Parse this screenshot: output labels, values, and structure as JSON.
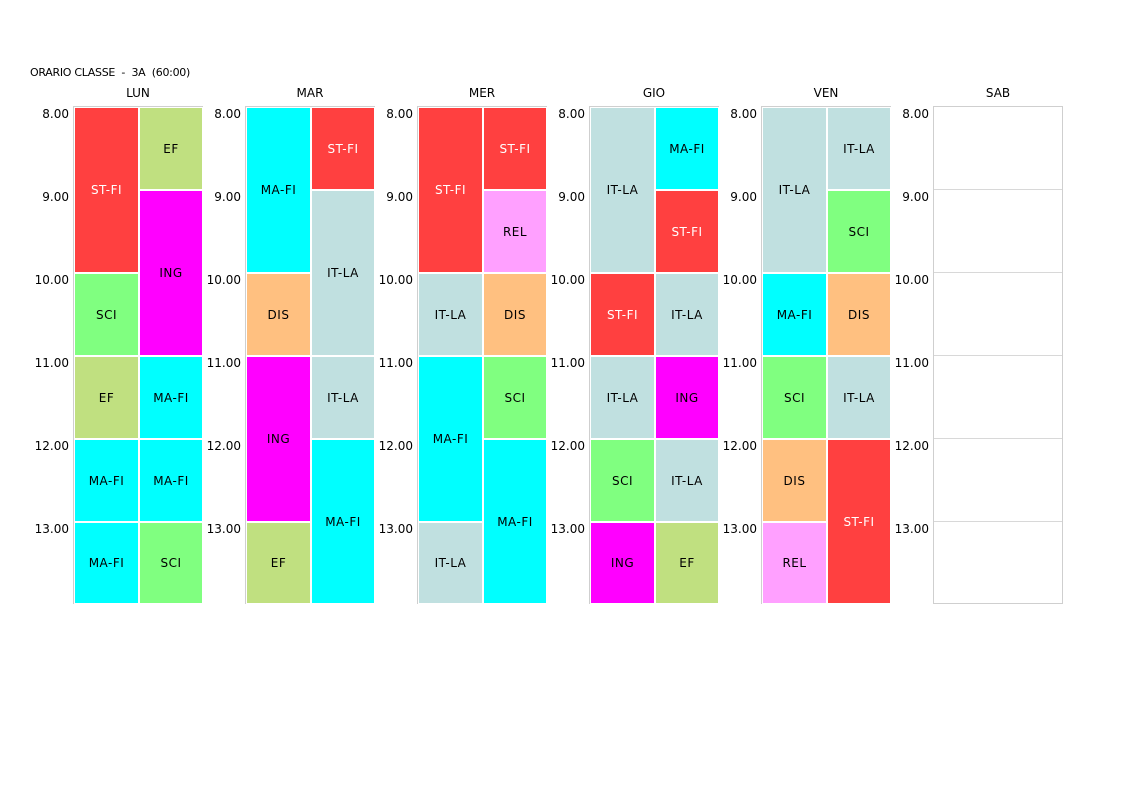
{
  "title": "ORARIO CLASSE  -  3A  (60:00)",
  "hours": [
    "8.00",
    "9.00",
    "10.00",
    "11.00",
    "12.00",
    "13.00"
  ],
  "colors": {
    "ST-FI": "#ff4040",
    "EF": "#c0e080",
    "ING": "#ff00ff",
    "SCI": "#80ff80",
    "MA-FI": "#00ffff",
    "DIS": "#ffc080",
    "IT-LA": "#c0e0e0",
    "REL": "#ffa0ff"
  },
  "light_text_subjects": [
    "ST-FI"
  ],
  "days": [
    {
      "label": "LUN",
      "blocks": [
        {
          "col": 0,
          "start": 0,
          "span": 2,
          "subject": "ST-FI"
        },
        {
          "col": 1,
          "start": 0,
          "span": 1,
          "subject": "EF"
        },
        {
          "col": 1,
          "start": 1,
          "span": 2,
          "subject": "ING"
        },
        {
          "col": 0,
          "start": 2,
          "span": 1,
          "subject": "SCI"
        },
        {
          "col": 0,
          "start": 3,
          "span": 1,
          "subject": "EF"
        },
        {
          "col": 1,
          "start": 3,
          "span": 1,
          "subject": "MA-FI"
        },
        {
          "col": 0,
          "start": 4,
          "span": 1,
          "subject": "MA-FI"
        },
        {
          "col": 1,
          "start": 4,
          "span": 1,
          "subject": "MA-FI"
        },
        {
          "col": 0,
          "start": 5,
          "span": 1,
          "subject": "MA-FI"
        },
        {
          "col": 1,
          "start": 5,
          "span": 1,
          "subject": "SCI"
        }
      ]
    },
    {
      "label": "MAR",
      "blocks": [
        {
          "col": 0,
          "start": 0,
          "span": 2,
          "subject": "MA-FI"
        },
        {
          "col": 1,
          "start": 0,
          "span": 1,
          "subject": "ST-FI"
        },
        {
          "col": 1,
          "start": 1,
          "span": 2,
          "subject": "IT-LA"
        },
        {
          "col": 0,
          "start": 2,
          "span": 1,
          "subject": "DIS"
        },
        {
          "col": 0,
          "start": 3,
          "span": 2,
          "subject": "ING"
        },
        {
          "col": 1,
          "start": 3,
          "span": 1,
          "subject": "IT-LA"
        },
        {
          "col": 1,
          "start": 4,
          "span": 2,
          "subject": "MA-FI"
        },
        {
          "col": 0,
          "start": 5,
          "span": 1,
          "subject": "EF"
        }
      ]
    },
    {
      "label": "MER",
      "blocks": [
        {
          "col": 0,
          "start": 0,
          "span": 2,
          "subject": "ST-FI"
        },
        {
          "col": 1,
          "start": 0,
          "span": 1,
          "subject": "ST-FI"
        },
        {
          "col": 1,
          "start": 1,
          "span": 1,
          "subject": "REL"
        },
        {
          "col": 0,
          "start": 2,
          "span": 1,
          "subject": "IT-LA"
        },
        {
          "col": 1,
          "start": 2,
          "span": 1,
          "subject": "DIS"
        },
        {
          "col": 0,
          "start": 3,
          "span": 2,
          "subject": "MA-FI"
        },
        {
          "col": 1,
          "start": 3,
          "span": 1,
          "subject": "SCI"
        },
        {
          "col": 1,
          "start": 4,
          "span": 2,
          "subject": "MA-FI"
        },
        {
          "col": 0,
          "start": 5,
          "span": 1,
          "subject": "IT-LA"
        }
      ]
    },
    {
      "label": "GIO",
      "blocks": [
        {
          "col": 0,
          "start": 0,
          "span": 2,
          "subject": "IT-LA"
        },
        {
          "col": 1,
          "start": 0,
          "span": 1,
          "subject": "MA-FI"
        },
        {
          "col": 1,
          "start": 1,
          "span": 1,
          "subject": "ST-FI"
        },
        {
          "col": 0,
          "start": 2,
          "span": 1,
          "subject": "ST-FI"
        },
        {
          "col": 1,
          "start": 2,
          "span": 1,
          "subject": "IT-LA"
        },
        {
          "col": 0,
          "start": 3,
          "span": 1,
          "subject": "IT-LA"
        },
        {
          "col": 1,
          "start": 3,
          "span": 1,
          "subject": "ING"
        },
        {
          "col": 0,
          "start": 4,
          "span": 1,
          "subject": "SCI"
        },
        {
          "col": 1,
          "start": 4,
          "span": 1,
          "subject": "IT-LA"
        },
        {
          "col": 0,
          "start": 5,
          "span": 1,
          "subject": "ING"
        },
        {
          "col": 1,
          "start": 5,
          "span": 1,
          "subject": "EF"
        }
      ]
    },
    {
      "label": "VEN",
      "blocks": [
        {
          "col": 0,
          "start": 0,
          "span": 2,
          "subject": "IT-LA"
        },
        {
          "col": 1,
          "start": 0,
          "span": 1,
          "subject": "IT-LA"
        },
        {
          "col": 1,
          "start": 1,
          "span": 1,
          "subject": "SCI"
        },
        {
          "col": 0,
          "start": 2,
          "span": 1,
          "subject": "MA-FI"
        },
        {
          "col": 1,
          "start": 2,
          "span": 1,
          "subject": "DIS"
        },
        {
          "col": 0,
          "start": 3,
          "span": 1,
          "subject": "SCI"
        },
        {
          "col": 1,
          "start": 3,
          "span": 1,
          "subject": "IT-LA"
        },
        {
          "col": 0,
          "start": 4,
          "span": 1,
          "subject": "DIS"
        },
        {
          "col": 1,
          "start": 4,
          "span": 2,
          "subject": "ST-FI"
        },
        {
          "col": 0,
          "start": 5,
          "span": 1,
          "subject": "REL"
        }
      ]
    },
    {
      "label": "SAB",
      "blocks": []
    }
  ]
}
